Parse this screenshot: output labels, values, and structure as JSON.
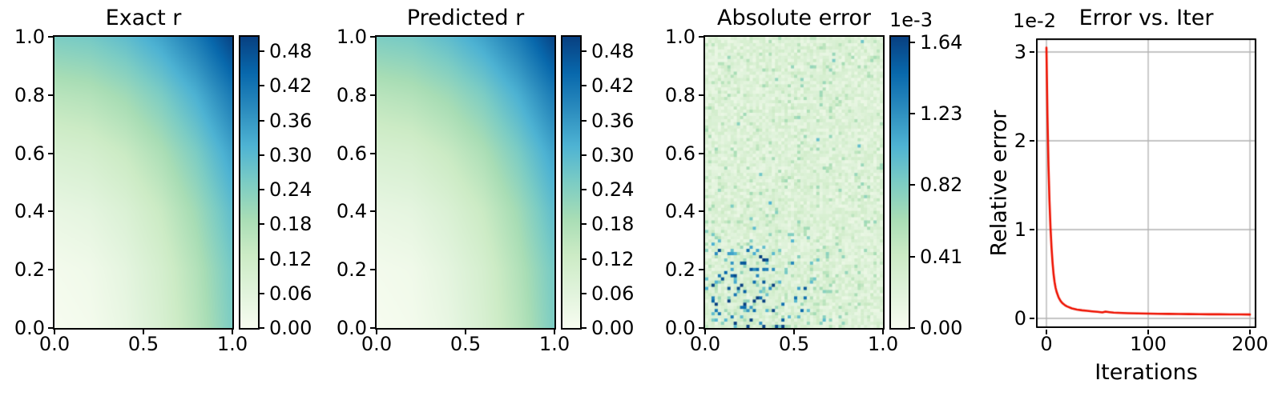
{
  "figure": {
    "background": "#ffffff",
    "text_color": "#000000",
    "grid_color": "#b0b0b0",
    "spine_color": "#000000"
  },
  "colormap": {
    "name": "GnBu",
    "stops": [
      "#f7fcf0",
      "#e0f3db",
      "#ccebc5",
      "#a8ddb5",
      "#7bccc4",
      "#4eb3d3",
      "#2b8cbe",
      "#0868ac",
      "#084081"
    ]
  },
  "chart_data": [
    {
      "type": "heatmap",
      "title": "Exact r",
      "x_range": [
        0,
        1
      ],
      "y_range": [
        0,
        1
      ],
      "x_tick_labels": [
        "0.0",
        "0.5",
        "1.0"
      ],
      "x_tick_values": [
        0,
        0.5,
        1
      ],
      "y_tick_labels": [
        "1.0",
        "0.8",
        "0.6",
        "0.4",
        "0.2",
        "0.0"
      ],
      "y_tick_values": [
        1,
        0.8,
        0.6,
        0.4,
        0.2,
        0
      ],
      "vmin": 0,
      "vmax": 0.505,
      "grid_y_desc": "rows listed from y=1.0 down to y=0.0, columns x=0.0 to 1.0",
      "grid": [
        [
          0.25,
          0.26,
          0.29,
          0.34,
          0.41,
          0.5
        ],
        [
          0.16,
          0.17,
          0.2,
          0.25,
          0.32,
          0.41
        ],
        [
          0.09,
          0.1,
          0.13,
          0.18,
          0.25,
          0.34
        ],
        [
          0.04,
          0.05,
          0.08,
          0.13,
          0.2,
          0.29
        ],
        [
          0.01,
          0.02,
          0.05,
          0.1,
          0.17,
          0.26
        ],
        [
          0.0,
          0.01,
          0.04,
          0.09,
          0.16,
          0.25
        ]
      ],
      "colorbar": {
        "tick_labels": [
          "0.48",
          "0.42",
          "0.36",
          "0.30",
          "0.24",
          "0.18",
          "0.12",
          "0.06",
          "0.00"
        ],
        "tick_values": [
          0.48,
          0.42,
          0.36,
          0.3,
          0.24,
          0.18,
          0.12,
          0.06,
          0.0
        ]
      }
    },
    {
      "type": "heatmap",
      "title": "Predicted r",
      "x_range": [
        0,
        1
      ],
      "y_range": [
        0,
        1
      ],
      "x_tick_labels": [
        "0.0",
        "0.5",
        "1.0"
      ],
      "x_tick_values": [
        0,
        0.5,
        1
      ],
      "y_tick_labels": [
        "1.0",
        "0.8",
        "0.6",
        "0.4",
        "0.2",
        "0.0"
      ],
      "y_tick_values": [
        1,
        0.8,
        0.6,
        0.4,
        0.2,
        0
      ],
      "vmin": 0,
      "vmax": 0.505,
      "grid": [
        [
          0.249,
          0.259,
          0.291,
          0.341,
          0.409,
          0.499
        ],
        [
          0.159,
          0.171,
          0.201,
          0.249,
          0.321,
          0.409
        ],
        [
          0.091,
          0.099,
          0.131,
          0.179,
          0.251,
          0.339
        ],
        [
          0.041,
          0.049,
          0.081,
          0.129,
          0.199,
          0.291
        ],
        [
          0.011,
          0.019,
          0.051,
          0.099,
          0.171,
          0.259
        ],
        [
          0.001,
          0.011,
          0.039,
          0.091,
          0.159,
          0.251
        ]
      ],
      "colorbar": {
        "tick_labels": [
          "0.48",
          "0.42",
          "0.36",
          "0.30",
          "0.24",
          "0.18",
          "0.12",
          "0.06",
          "0.00"
        ],
        "tick_values": [
          0.48,
          0.42,
          0.36,
          0.3,
          0.24,
          0.18,
          0.12,
          0.06,
          0.0
        ]
      }
    },
    {
      "type": "heatmap",
      "title": "Absolute error",
      "scale_label": "1e-3",
      "x_range": [
        0,
        1
      ],
      "y_range": [
        0,
        1
      ],
      "x_tick_labels": [
        "0.0",
        "0.5",
        "1.0"
      ],
      "x_tick_values": [
        0,
        0.5,
        1
      ],
      "y_tick_labels": [
        "1.0",
        "0.8",
        "0.6",
        "0.4",
        "0.2",
        "0.0"
      ],
      "y_tick_values": [
        1,
        0.8,
        0.6,
        0.4,
        0.2,
        0
      ],
      "vmin": 0,
      "vmax": 1.672,
      "noise": {
        "seed": 7,
        "base_min": 0.1,
        "base_span": 0.26,
        "speckle_rate": 0.07,
        "speckle_amp": [
          0.12,
          0.3
        ],
        "hotspot": {
          "x": 0.27,
          "y": 0.08,
          "sx": 0.33,
          "sy": 0.24,
          "rate_boost": 0.16,
          "amp_boost": 1.0
        },
        "spike_amp": [
          0.25,
          1.35
        ],
        "max": 1.67
      },
      "colorbar": {
        "tick_labels": [
          "1.64",
          "1.23",
          "0.82",
          "0.41",
          "0.00"
        ],
        "tick_values": [
          1.64,
          1.23,
          0.82,
          0.41,
          0.0
        ]
      }
    },
    {
      "type": "line",
      "title": "Error vs. Iter",
      "scale_label": "1e-2",
      "xlabel": "Iterations",
      "ylabel": "Relative error",
      "line_color": "#ee1100",
      "grid": true,
      "xlim": [
        -10,
        206
      ],
      "ylim_1e2": [
        -0.47,
        3.26
      ],
      "x_tick_labels": [
        "0",
        "100",
        "200"
      ],
      "x_tick_values": [
        0,
        100,
        200
      ],
      "y_tick_labels": [
        "0",
        "1",
        "2",
        "3"
      ],
      "y_tick_values": [
        0,
        1,
        2,
        3
      ],
      "series_name": "relative error (x 1e-2)",
      "points": [
        [
          0,
          3.05
        ],
        [
          1,
          2.28
        ],
        [
          2,
          1.72
        ],
        [
          3,
          1.32
        ],
        [
          4,
          1.02
        ],
        [
          5,
          0.8
        ],
        [
          6,
          0.63
        ],
        [
          7,
          0.5
        ],
        [
          8,
          0.41
        ],
        [
          9,
          0.345
        ],
        [
          10,
          0.3
        ],
        [
          12,
          0.235
        ],
        [
          14,
          0.195
        ],
        [
          16,
          0.168
        ],
        [
          18,
          0.15
        ],
        [
          20,
          0.136
        ],
        [
          25,
          0.113
        ],
        [
          30,
          0.099
        ],
        [
          35,
          0.091
        ],
        [
          40,
          0.085
        ],
        [
          45,
          0.079
        ],
        [
          50,
          0.074
        ],
        [
          55,
          0.068
        ],
        [
          58,
          0.076
        ],
        [
          62,
          0.07
        ],
        [
          66,
          0.065
        ],
        [
          70,
          0.063
        ],
        [
          80,
          0.059
        ],
        [
          90,
          0.056
        ],
        [
          100,
          0.054
        ],
        [
          110,
          0.052
        ],
        [
          120,
          0.051
        ],
        [
          130,
          0.049
        ],
        [
          140,
          0.048
        ],
        [
          150,
          0.047
        ],
        [
          160,
          0.046
        ],
        [
          170,
          0.046
        ],
        [
          180,
          0.045
        ],
        [
          190,
          0.045
        ],
        [
          200,
          0.044
        ]
      ]
    }
  ]
}
